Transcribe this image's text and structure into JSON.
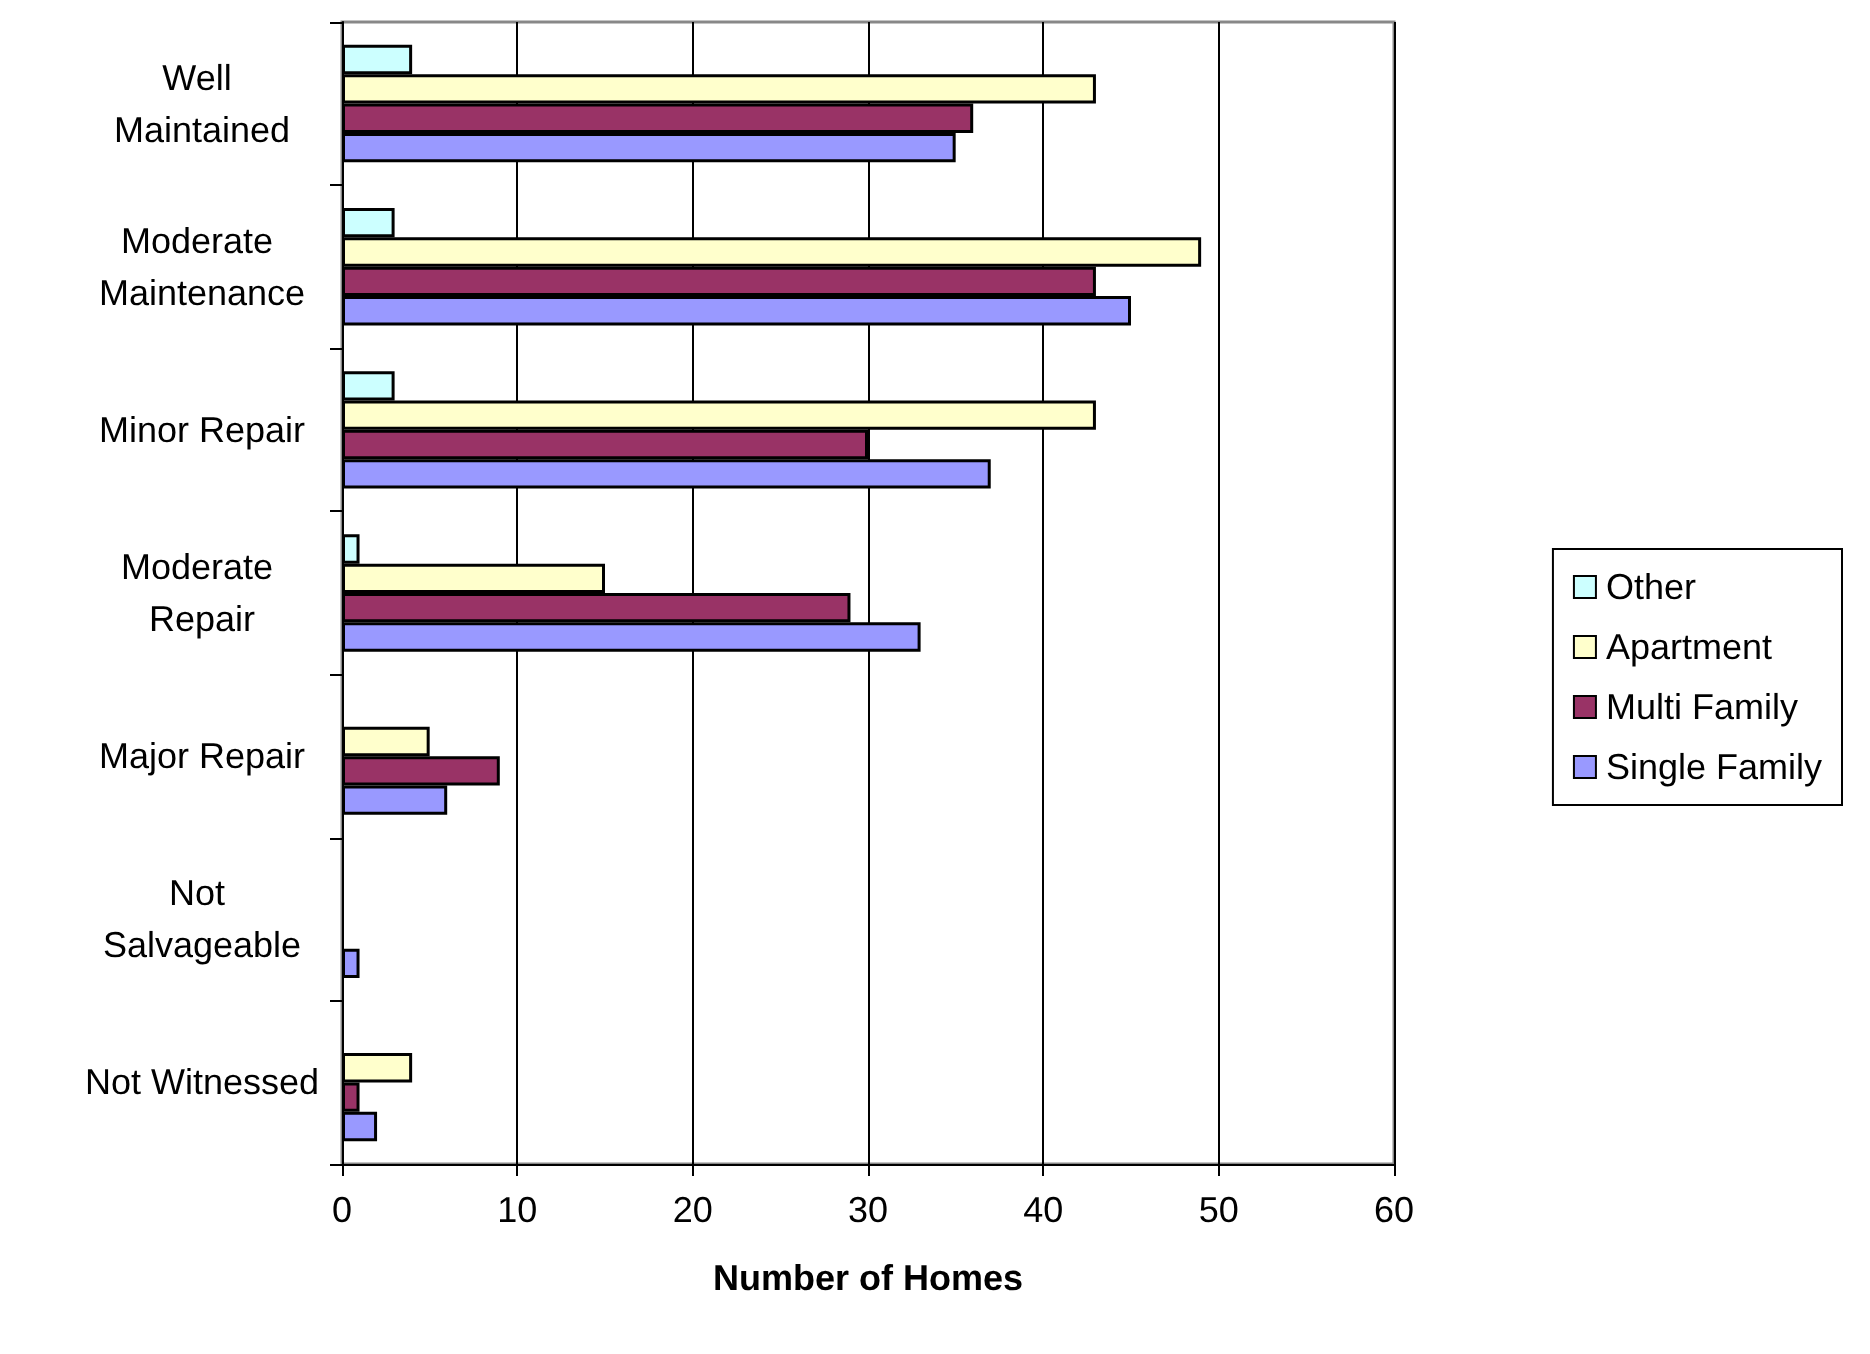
{
  "chart_data": {
    "type": "bar",
    "orientation": "horizontal",
    "xlabel": "Number of Homes",
    "categories": [
      "Well Maintained",
      "Moderate Maintenance",
      "Minor Repair",
      "Moderate Repair",
      "Major Repair",
      "Not Salvageable",
      "Not Witnessed"
    ],
    "series": [
      {
        "name": "Other",
        "color": "#ccffff",
        "values": [
          4,
          3,
          3,
          1,
          0,
          0,
          0
        ]
      },
      {
        "name": "Apartment",
        "color": "#ffffcc",
        "values": [
          43,
          49,
          43,
          15,
          5,
          0,
          4
        ]
      },
      {
        "name": "Multi Family",
        "color": "#993366",
        "values": [
          36,
          43,
          30,
          29,
          9,
          0,
          1
        ]
      },
      {
        "name": "Single Family",
        "color": "#9999ff",
        "values": [
          35,
          45,
          37,
          33,
          6,
          1,
          2
        ]
      }
    ],
    "xlim": [
      0,
      60
    ],
    "xticks": [
      0,
      10,
      20,
      30,
      40,
      50,
      60
    ],
    "grid": "x",
    "legend": "right"
  }
}
